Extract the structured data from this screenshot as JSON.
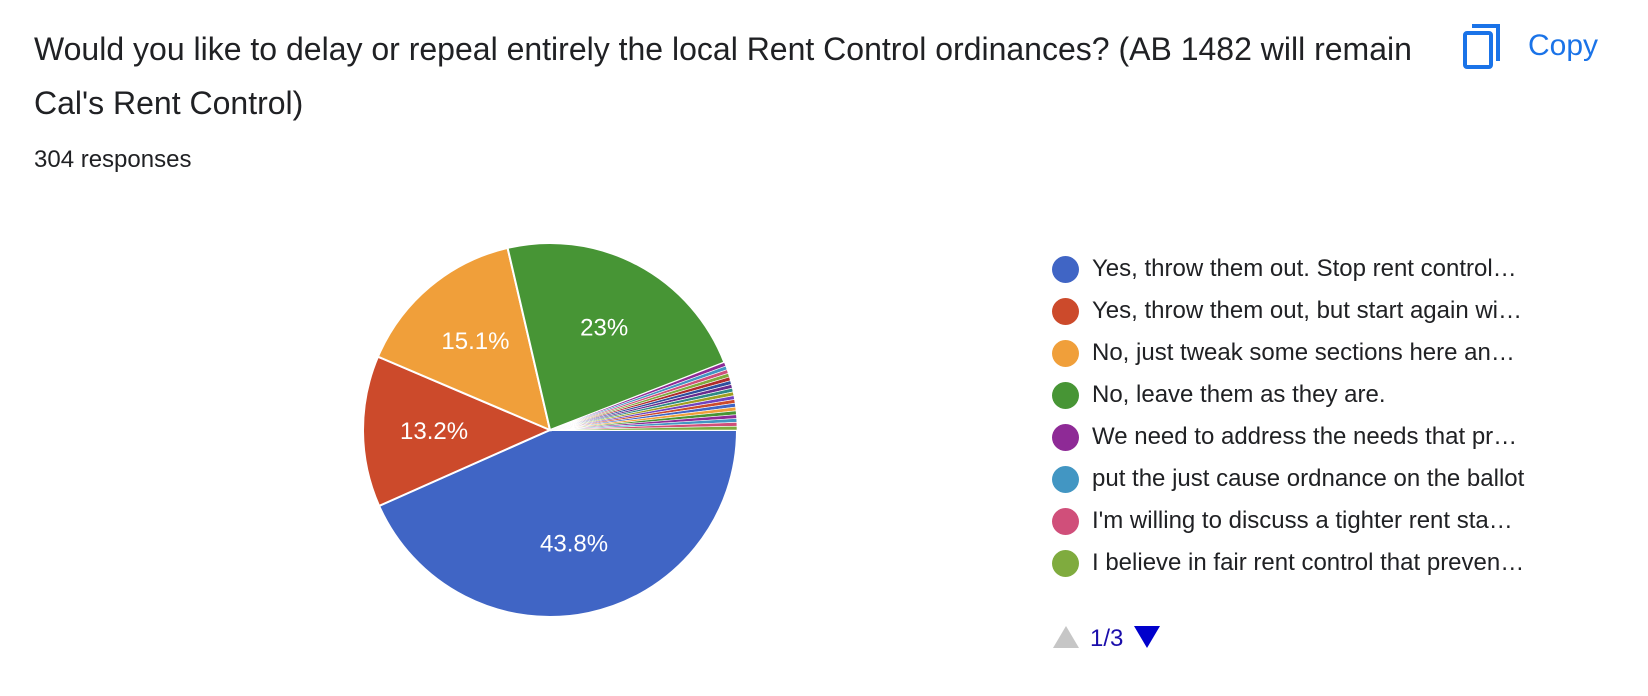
{
  "question": {
    "title": "Would you like to delay or repeal entirely the local Rent Control ordinances? (AB 1482 will remain Cal's Rent Control)",
    "response_count": "304 responses"
  },
  "copy_button": {
    "label": "Copy",
    "icon": "copy-icon",
    "color": "#1a73e8"
  },
  "pager": {
    "label": "1/3",
    "up_icon": "triangle-up-icon",
    "down_icon": "triangle-down-icon"
  },
  "chart_data": {
    "type": "pie",
    "title": "",
    "slices": [
      {
        "label": "Yes, throw them out. Stop rent control…",
        "value": 43.8,
        "display": "43.8%",
        "color": "#4065c5"
      },
      {
        "label": "Yes, throw them out, but start again wi…",
        "value": 13.2,
        "display": "13.2%",
        "color": "#cc4a2b"
      },
      {
        "label": "No, just tweak some sections here an…",
        "value": 15.1,
        "display": "15.1%",
        "color": "#f09f3a"
      },
      {
        "label": "No, leave them as they are.",
        "value": 23.0,
        "display": "23%",
        "color": "#479535"
      },
      {
        "label": "We need to address the needs that pr…",
        "value": 0.33,
        "display": "",
        "color": "#8e2a96"
      },
      {
        "label": "put the just cause ordnance on the ballot",
        "value": 0.33,
        "display": "",
        "color": "#4296c3"
      },
      {
        "label": "I'm willing to discuss a tighter rent sta…",
        "value": 0.33,
        "display": "",
        "color": "#d04f7a"
      },
      {
        "label": "I believe in fair rent control that preven…",
        "value": 0.33,
        "display": "",
        "color": "#7fab3e"
      }
    ],
    "other_slices_count": 14,
    "other_slice_value": 0.33,
    "other_colors": [
      "#b02b2b",
      "#2d4f9e",
      "#6a2a8c",
      "#2d8a86",
      "#a0a020",
      "#6f43c0",
      "#cc4a2b",
      "#4065c5",
      "#f09f3a",
      "#479535",
      "#8e2a96",
      "#4296c3",
      "#d04f7a",
      "#7fab3e"
    ],
    "legend_position": "right"
  }
}
